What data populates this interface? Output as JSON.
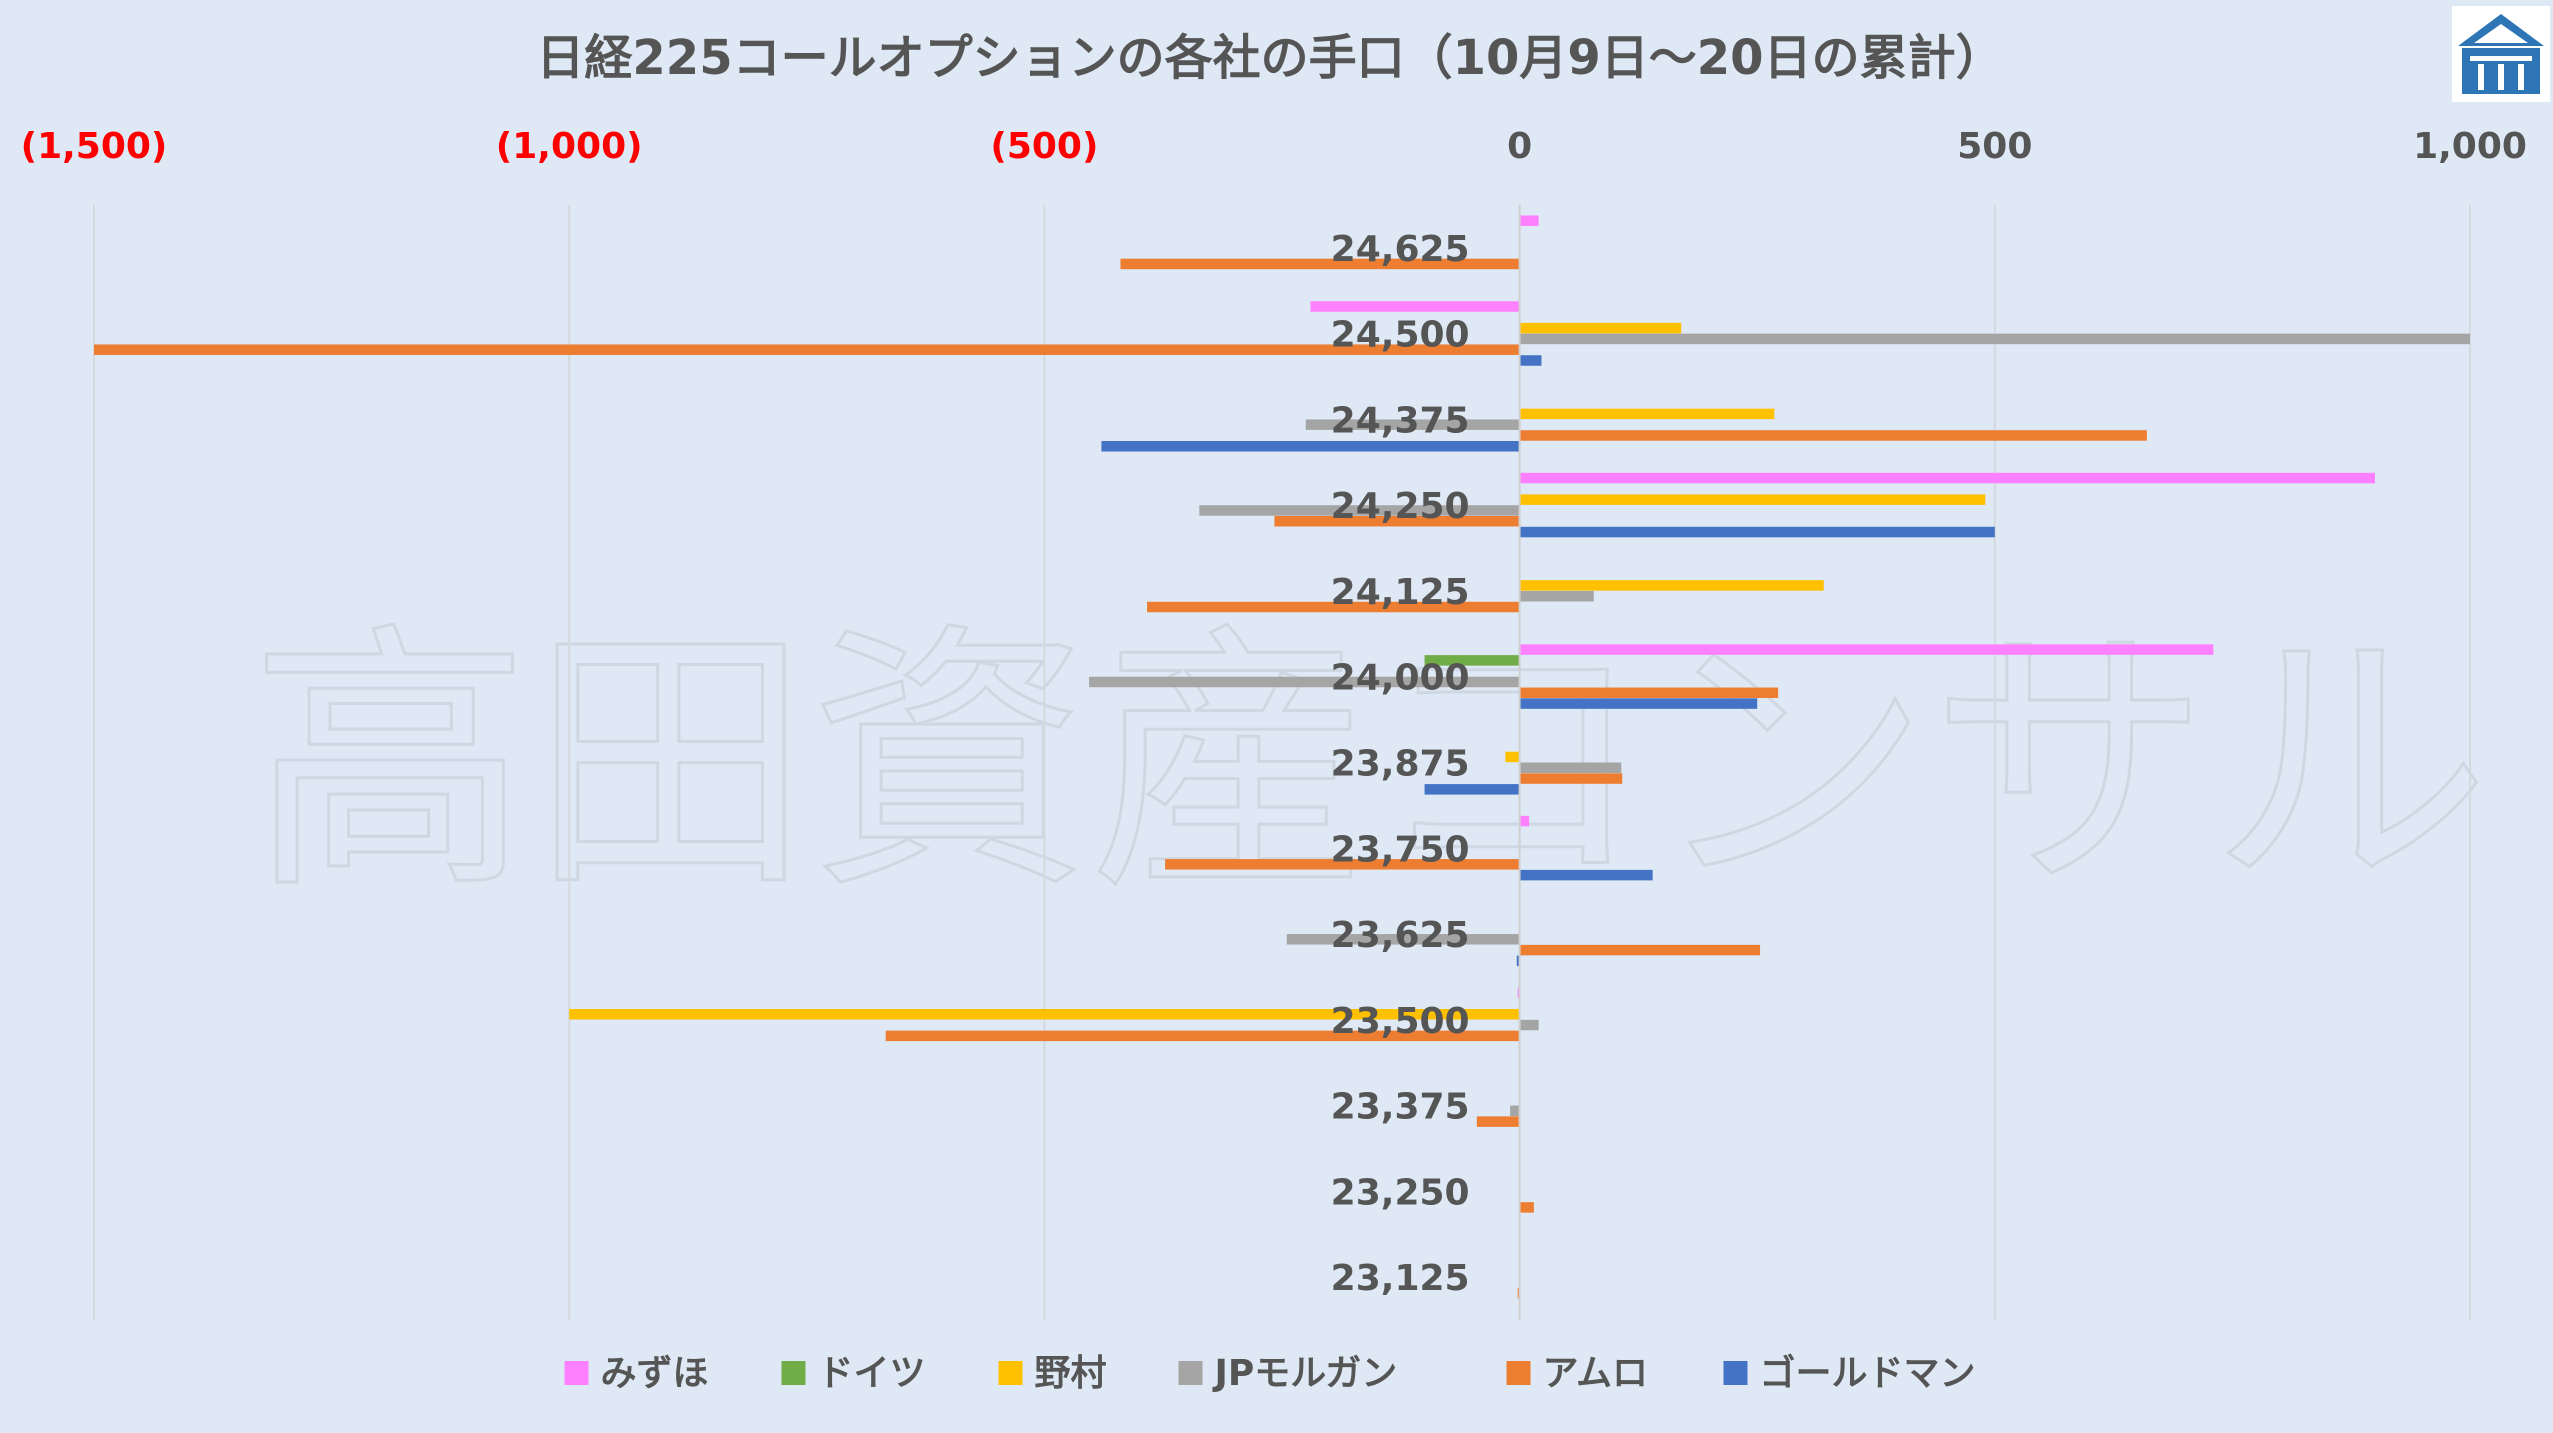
{
  "chart_data": {
    "type": "bar",
    "orientation": "horizontal",
    "title": "日経225コールオプションの各社の手口（10月9日～20日の累計）",
    "watermark": "高田資産コンサル",
    "xlim": [
      -1500,
      1000
    ],
    "ticks": [
      {
        "value": -1500,
        "label": "(1,500)",
        "negative": true
      },
      {
        "value": -1000,
        "label": "(1,000)",
        "negative": true
      },
      {
        "value": -500,
        "label": "(500)",
        "negative": true
      },
      {
        "value": 0,
        "label": "0",
        "negative": false
      },
      {
        "value": 500,
        "label": "500",
        "negative": false
      },
      {
        "value": 1000,
        "label": "1,000",
        "negative": false
      }
    ],
    "grid": true,
    "legend_position": "bottom",
    "categories": [
      "24,625",
      "24,500",
      "24,375",
      "24,250",
      "24,125",
      "24,000",
      "23,875",
      "23,750",
      "23,625",
      "23,500",
      "23,375",
      "23,250",
      "23,125"
    ],
    "series": [
      {
        "name": "みずほ",
        "color": "#ff80ff",
        "values": [
          20,
          -220,
          0,
          900,
          0,
          730,
          0,
          10,
          0,
          -2,
          0,
          0,
          0
        ]
      },
      {
        "name": "ドイツ",
        "color": "#70ad47",
        "values": [
          0,
          0,
          0,
          0,
          0,
          -100,
          0,
          0,
          0,
          0,
          0,
          0,
          0
        ]
      },
      {
        "name": "野村",
        "color": "#ffc000",
        "values": [
          0,
          170,
          268,
          490,
          320,
          0,
          -15,
          0,
          0,
          -1000,
          0,
          0,
          0
        ]
      },
      {
        "name": "JPモルガン",
        "color": "#a5a5a5",
        "values": [
          0,
          1000,
          -225,
          -337,
          78,
          -453,
          107,
          0,
          -245,
          20,
          -10,
          0,
          0
        ]
      },
      {
        "name": "アムロ",
        "color": "#ed7d31",
        "values": [
          -420,
          -1500,
          660,
          -258,
          -392,
          272,
          108,
          -373,
          253,
          -667,
          -45,
          15,
          -2
        ]
      },
      {
        "name": "ゴールドマン",
        "color": "#4472c4",
        "values": [
          0,
          23,
          -440,
          500,
          0,
          250,
          -100,
          140,
          -3,
          0,
          0,
          0,
          0
        ]
      }
    ]
  },
  "colors": {
    "negative_tick": "#ff0000",
    "tick": "#555555"
  },
  "logo": {
    "name": "takata-logo-icon"
  }
}
